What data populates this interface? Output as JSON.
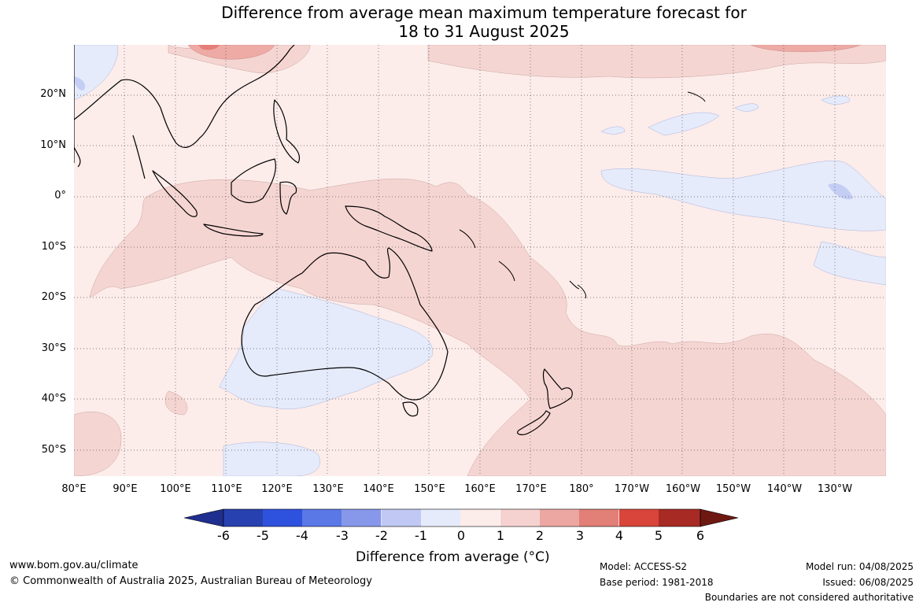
{
  "title": {
    "line1": "Difference from average mean maximum temperature forecast for",
    "line2": "18 to 31 August 2025"
  },
  "map": {
    "lat_labels": [
      "20°N",
      "10°N",
      "0°",
      "10°S",
      "20°S",
      "30°S",
      "40°S",
      "50°S"
    ],
    "lon_labels": [
      "80°E",
      "90°E",
      "100°E",
      "110°E",
      "120°E",
      "130°E",
      "140°E",
      "150°E",
      "160°E",
      "170°E",
      "180°",
      "170°W",
      "160°W",
      "150°W",
      "140°W",
      "130°W"
    ],
    "background_color": "#fbe9e7"
  },
  "colorbar": {
    "title": "Difference from average (°C)",
    "ticks": [
      "-6",
      "-5",
      "-4",
      "-3",
      "-2",
      "-1",
      "0",
      "1",
      "2",
      "3",
      "4",
      "5",
      "6"
    ],
    "colors": [
      "#1f2f8f",
      "#2741b0",
      "#2f52de",
      "#5a78e6",
      "#8798eb",
      "#c0c8f3",
      "#e6ebfb",
      "#fcecea",
      "#f5d2d0",
      "#eda7a2",
      "#e27f76",
      "#d9453a",
      "#a82a24",
      "#6e1812"
    ]
  },
  "footer": {
    "website": "www.bom.gov.au/climate",
    "copyright": "© Commonwealth of Australia 2025, Australian Bureau of Meteorology",
    "model": "Model: ACCESS-S2",
    "base_period": "Base period: 1981-2018",
    "model_run": "Model run: 04/08/2025",
    "issued": "Issued: 06/08/2025",
    "disclaimer": "Boundaries are not considered authoritative"
  }
}
